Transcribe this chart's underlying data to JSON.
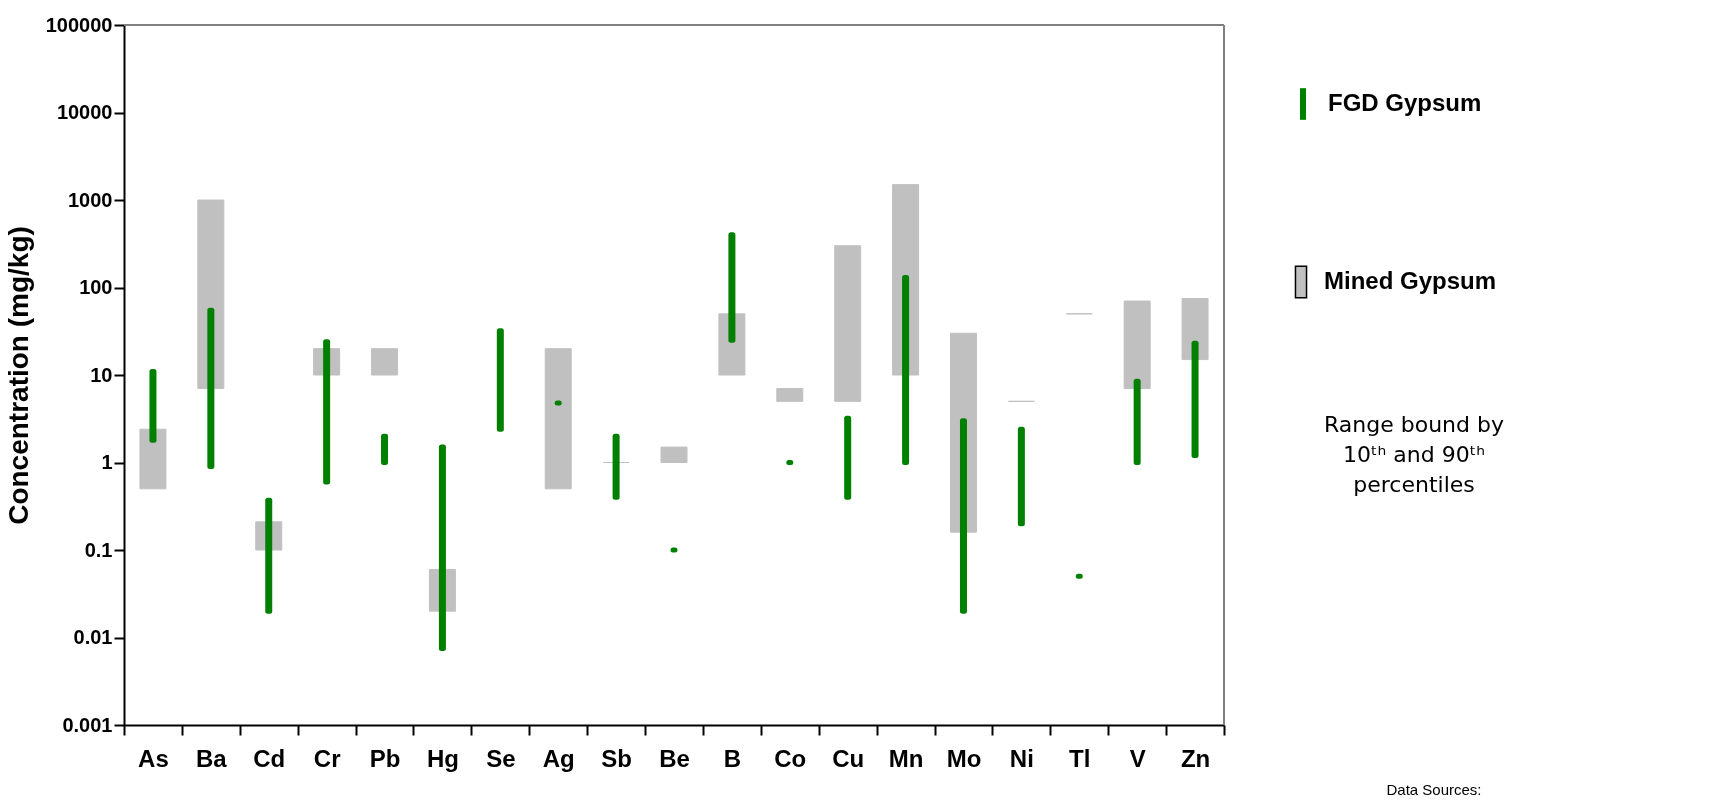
{
  "chart_data": {
    "type": "bar",
    "ylabel": "Concentration (mg/kg)",
    "categories": [
      "As",
      "Ba",
      "Cd",
      "Cr",
      "Pb",
      "Hg",
      "Se",
      "Ag",
      "Sb",
      "Be",
      "B",
      "Co",
      "Cu",
      "Mn",
      "Mo",
      "Ni",
      "Tl",
      "V",
      "Zn"
    ],
    "series": [
      {
        "name": "FGD Gypsum",
        "color": "#008000",
        "base": [
          1.8,
          0.9,
          0.02,
          0.6,
          1,
          0.0075,
          2.4,
          4.8,
          0.4,
          0.1,
          25,
          1,
          0.4,
          1,
          0.02,
          0.2,
          0.05,
          1,
          1.2
        ],
        "values": [
          9.2,
          54.1,
          0.35,
          23.4,
          1,
          1.4925,
          29.6,
          0,
          1.6,
          0,
          375,
          0,
          2.8,
          129,
          2.98,
          2.2,
          0,
          7.5,
          21.8
        ]
      },
      {
        "name": "Mined Gypsum",
        "color": "#c0c0c0",
        "base": [
          0.5,
          7,
          0.1,
          10,
          10,
          0.02,
          null,
          0.5,
          1,
          1,
          10,
          5,
          5,
          10,
          0.16,
          5,
          50,
          7,
          15
        ],
        "values": [
          1.9,
          993,
          0.11,
          10,
          10,
          0.04,
          null,
          19.5,
          0,
          0.5,
          40,
          2,
          295,
          1490,
          29.84,
          0,
          0,
          63,
          60
        ]
      }
    ],
    "log": true,
    "ylim": [
      0.001,
      100000
    ],
    "yticks": [
      0.001,
      0.01,
      0.1,
      1,
      10,
      100,
      1000,
      10000,
      100000
    ],
    "grid": false,
    "legend": "right",
    "annotations": [
      "Range bound by\n10ᵗʰ and 90ᵗʰ\npercentiles",
      "Data Sources:"
    ]
  }
}
